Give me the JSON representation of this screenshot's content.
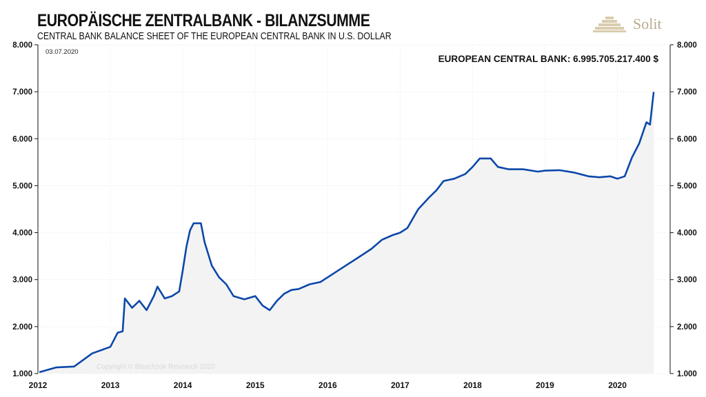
{
  "header": {
    "title": "EUROPÄISCHE ZENTRALBANK - BILANZSUMME",
    "subtitle": "CENTRAL BANK BALANCE SHEET OF THE EUROPEAN CENTRAL BANK IN U.S. DOLLAR",
    "logo": "Solit"
  },
  "chart_data": {
    "type": "area",
    "title": "EUROPÄISCHE ZENTRALBANK - BILANZSUMME",
    "date_label": "03.07.2020",
    "annotation": "EUROPEAN CENTRAL BANK: 6.995.705.217.400 $",
    "watermark": "Copyright © Blaschzok Research 2020",
    "ylim": [
      1000,
      8000
    ],
    "yticks": [
      "1.000",
      "2.000",
      "3.000",
      "4.000",
      "5.000",
      "6.000",
      "7.000",
      "8.000"
    ],
    "xlim": [
      2012,
      2020.68
    ],
    "xticks": [
      "2012",
      "2013",
      "2014",
      "2015",
      "2016",
      "2017",
      "2018",
      "2019",
      "2020"
    ],
    "line_color": "#0a47a9",
    "fill_color": "#f3f3f3",
    "series": [
      {
        "name": "European Central Bank",
        "x": [
          2012.02,
          2012.25,
          2012.5,
          2012.75,
          2013.0,
          2013.1,
          2013.17,
          2013.2,
          2013.3,
          2013.4,
          2013.5,
          2013.6,
          2013.65,
          2013.75,
          2013.85,
          2013.95,
          2014.0,
          2014.05,
          2014.1,
          2014.15,
          2014.25,
          2014.3,
          2014.4,
          2014.5,
          2014.6,
          2014.7,
          2014.85,
          2015.0,
          2015.1,
          2015.2,
          2015.3,
          2015.4,
          2015.5,
          2015.6,
          2015.75,
          2015.9,
          2016.0,
          2016.2,
          2016.4,
          2016.6,
          2016.75,
          2016.9,
          2017.0,
          2017.1,
          2017.25,
          2017.4,
          2017.5,
          2017.6,
          2017.75,
          2017.9,
          2018.0,
          2018.1,
          2018.25,
          2018.35,
          2018.5,
          2018.7,
          2018.9,
          2019.0,
          2019.2,
          2019.4,
          2019.6,
          2019.75,
          2019.9,
          2020.0,
          2020.1,
          2020.2,
          2020.3,
          2020.4,
          2020.45,
          2020.5
        ],
        "values": [
          1030,
          1130,
          1150,
          1430,
          1570,
          1870,
          1900,
          2600,
          2400,
          2550,
          2350,
          2650,
          2850,
          2600,
          2650,
          2750,
          3200,
          3700,
          4050,
          4200,
          4200,
          3800,
          3300,
          3050,
          2900,
          2650,
          2580,
          2650,
          2450,
          2350,
          2550,
          2700,
          2780,
          2800,
          2900,
          2950,
          3050,
          3250,
          3450,
          3650,
          3850,
          3950,
          4000,
          4100,
          4500,
          4750,
          4900,
          5100,
          5150,
          5250,
          5400,
          5580,
          5580,
          5400,
          5350,
          5350,
          5300,
          5320,
          5330,
          5280,
          5200,
          5180,
          5200,
          5150,
          5200,
          5600,
          5900,
          6350,
          6300,
          6996
        ]
      }
    ]
  }
}
